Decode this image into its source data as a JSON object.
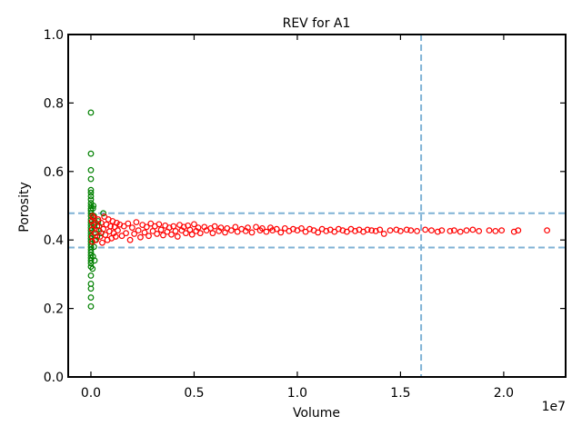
{
  "chart_data": {
    "type": "scatter",
    "title": "REV for A1",
    "xlabel": "Volume",
    "ylabel": "Porosity",
    "x_multiplier_label": "1e7",
    "xlim": [
      -1100000,
      23000000
    ],
    "ylim": [
      0.0,
      1.0
    ],
    "x_ticks": [
      0,
      5000000,
      10000000,
      15000000,
      20000000
    ],
    "x_tick_labels": [
      "0.0",
      "0.5",
      "1.0",
      "1.5",
      "2.0"
    ],
    "y_ticks": [
      0.0,
      0.2,
      0.4,
      0.6,
      0.8,
      1.0
    ],
    "y_tick_labels": [
      "0.0",
      "0.2",
      "0.4",
      "0.6",
      "0.8",
      "1.0"
    ],
    "grid": false,
    "reference_lines": {
      "color": "#7fb2d5",
      "horizontal": [
        0.378,
        0.478
      ],
      "vertical": [
        16000000
      ]
    },
    "series": [
      {
        "color": "#008000",
        "marker": "open-circle",
        "points": [
          [
            0,
            0.772
          ],
          [
            0,
            0.652
          ],
          [
            0,
            0.604
          ],
          [
            0,
            0.578
          ],
          [
            0,
            0.546
          ],
          [
            0,
            0.538
          ],
          [
            0,
            0.528
          ],
          [
            0,
            0.518
          ],
          [
            0,
            0.508
          ],
          [
            0,
            0.5
          ],
          [
            0,
            0.492
          ],
          [
            0,
            0.486
          ],
          [
            0,
            0.478
          ],
          [
            0,
            0.47
          ],
          [
            0,
            0.46
          ],
          [
            0,
            0.452
          ],
          [
            0,
            0.444
          ],
          [
            0,
            0.436
          ],
          [
            0,
            0.428
          ],
          [
            0,
            0.42
          ],
          [
            0,
            0.412
          ],
          [
            0,
            0.404
          ],
          [
            0,
            0.396
          ],
          [
            0,
            0.388
          ],
          [
            0,
            0.38
          ],
          [
            0,
            0.372
          ],
          [
            0,
            0.364
          ],
          [
            0,
            0.356
          ],
          [
            0,
            0.348
          ],
          [
            0,
            0.34
          ],
          [
            0,
            0.332
          ],
          [
            0,
            0.322
          ],
          [
            0,
            0.296
          ],
          [
            0,
            0.272
          ],
          [
            0,
            0.258
          ],
          [
            0,
            0.232
          ],
          [
            0,
            0.206
          ],
          [
            100000,
            0.492
          ],
          [
            150000,
            0.47
          ],
          [
            200000,
            0.452
          ],
          [
            250000,
            0.43
          ],
          [
            200000,
            0.4
          ],
          [
            150000,
            0.38
          ],
          [
            100000,
            0.352
          ],
          [
            300000,
            0.41
          ],
          [
            350000,
            0.455
          ],
          [
            400000,
            0.44
          ],
          [
            600000,
            0.478
          ],
          [
            500000,
            0.42
          ],
          [
            120000,
            0.5
          ],
          [
            180000,
            0.34
          ],
          [
            80000,
            0.316
          ]
        ]
      },
      {
        "color": "#ff0000",
        "marker": "open-circle",
        "points": [
          [
            50000,
            0.455
          ],
          [
            60000,
            0.43
          ],
          [
            60000,
            0.41
          ],
          [
            70000,
            0.395
          ],
          [
            80000,
            0.47
          ],
          [
            120000,
            0.445
          ],
          [
            150000,
            0.465
          ],
          [
            200000,
            0.42
          ],
          [
            250000,
            0.4
          ],
          [
            300000,
            0.44
          ],
          [
            350000,
            0.46
          ],
          [
            400000,
            0.428
          ],
          [
            450000,
            0.41
          ],
          [
            500000,
            0.45
          ],
          [
            550000,
            0.392
          ],
          [
            600000,
            0.432
          ],
          [
            650000,
            0.468
          ],
          [
            700000,
            0.415
          ],
          [
            750000,
            0.445
          ],
          [
            800000,
            0.4
          ],
          [
            850000,
            0.46
          ],
          [
            900000,
            0.425
          ],
          [
            950000,
            0.44
          ],
          [
            1000000,
            0.405
          ],
          [
            1050000,
            0.455
          ],
          [
            1100000,
            0.42
          ],
          [
            1150000,
            0.438
          ],
          [
            1200000,
            0.41
          ],
          [
            1250000,
            0.45
          ],
          [
            1300000,
            0.428
          ],
          [
            1400000,
            0.445
          ],
          [
            1500000,
            0.412
          ],
          [
            1600000,
            0.44
          ],
          [
            1700000,
            0.42
          ],
          [
            1800000,
            0.448
          ],
          [
            1900000,
            0.4
          ],
          [
            2000000,
            0.436
          ],
          [
            2100000,
            0.418
          ],
          [
            2200000,
            0.452
          ],
          [
            2300000,
            0.428
          ],
          [
            2400000,
            0.408
          ],
          [
            2500000,
            0.444
          ],
          [
            2600000,
            0.422
          ],
          [
            2700000,
            0.438
          ],
          [
            2800000,
            0.412
          ],
          [
            2900000,
            0.448
          ],
          [
            3000000,
            0.426
          ],
          [
            3100000,
            0.44
          ],
          [
            3200000,
            0.418
          ],
          [
            3300000,
            0.446
          ],
          [
            3400000,
            0.43
          ],
          [
            3500000,
            0.414
          ],
          [
            3600000,
            0.442
          ],
          [
            3700000,
            0.424
          ],
          [
            3800000,
            0.436
          ],
          [
            3900000,
            0.416
          ],
          [
            4000000,
            0.44
          ],
          [
            4100000,
            0.426
          ],
          [
            4200000,
            0.41
          ],
          [
            4300000,
            0.444
          ],
          [
            4400000,
            0.428
          ],
          [
            4500000,
            0.438
          ],
          [
            4600000,
            0.42
          ],
          [
            4700000,
            0.442
          ],
          [
            4800000,
            0.43
          ],
          [
            4900000,
            0.416
          ],
          [
            5000000,
            0.446
          ],
          [
            5100000,
            0.426
          ],
          [
            5200000,
            0.436
          ],
          [
            5300000,
            0.42
          ],
          [
            5500000,
            0.438
          ],
          [
            5600000,
            0.428
          ],
          [
            5800000,
            0.434
          ],
          [
            5900000,
            0.42
          ],
          [
            6000000,
            0.44
          ],
          [
            6200000,
            0.426
          ],
          [
            6300000,
            0.436
          ],
          [
            6500000,
            0.422
          ],
          [
            6600000,
            0.434
          ],
          [
            6800000,
            0.428
          ],
          [
            7000000,
            0.438
          ],
          [
            7100000,
            0.424
          ],
          [
            7300000,
            0.432
          ],
          [
            7500000,
            0.426
          ],
          [
            7600000,
            0.436
          ],
          [
            7800000,
            0.422
          ],
          [
            8000000,
            0.438
          ],
          [
            8200000,
            0.428
          ],
          [
            8300000,
            0.434
          ],
          [
            8500000,
            0.424
          ],
          [
            8700000,
            0.436
          ],
          [
            8800000,
            0.428
          ],
          [
            9000000,
            0.432
          ],
          [
            9200000,
            0.422
          ],
          [
            9400000,
            0.434
          ],
          [
            9600000,
            0.426
          ],
          [
            9800000,
            0.432
          ],
          [
            10000000,
            0.428
          ],
          [
            10200000,
            0.434
          ],
          [
            10400000,
            0.424
          ],
          [
            10600000,
            0.432
          ],
          [
            10800000,
            0.428
          ],
          [
            11000000,
            0.422
          ],
          [
            11200000,
            0.432
          ],
          [
            11400000,
            0.426
          ],
          [
            11600000,
            0.43
          ],
          [
            11800000,
            0.424
          ],
          [
            12000000,
            0.432
          ],
          [
            12200000,
            0.428
          ],
          [
            12400000,
            0.424
          ],
          [
            12600000,
            0.432
          ],
          [
            12800000,
            0.426
          ],
          [
            13000000,
            0.43
          ],
          [
            13200000,
            0.424
          ],
          [
            13400000,
            0.43
          ],
          [
            13600000,
            0.428
          ],
          [
            13800000,
            0.426
          ],
          [
            14000000,
            0.43
          ],
          [
            14200000,
            0.418
          ],
          [
            14500000,
            0.428
          ],
          [
            14800000,
            0.43
          ],
          [
            15000000,
            0.426
          ],
          [
            15300000,
            0.43
          ],
          [
            15500000,
            0.428
          ],
          [
            15800000,
            0.426
          ],
          [
            16200000,
            0.43
          ],
          [
            16500000,
            0.428
          ],
          [
            16800000,
            0.424
          ],
          [
            17000000,
            0.428
          ],
          [
            17400000,
            0.426
          ],
          [
            17600000,
            0.428
          ],
          [
            17900000,
            0.424
          ],
          [
            18200000,
            0.428
          ],
          [
            18500000,
            0.43
          ],
          [
            18800000,
            0.426
          ],
          [
            19300000,
            0.428
          ],
          [
            19600000,
            0.426
          ],
          [
            19900000,
            0.428
          ],
          [
            20500000,
            0.424
          ],
          [
            20700000,
            0.428
          ],
          [
            22100000,
            0.428
          ]
        ]
      }
    ]
  }
}
